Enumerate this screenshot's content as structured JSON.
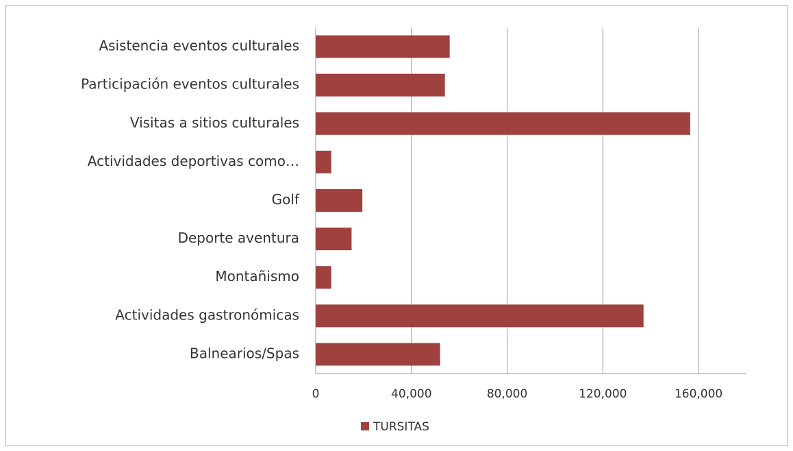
{
  "chart_data": {
    "type": "bar",
    "orientation": "horizontal",
    "categories": [
      "Asistencia eventos culturales",
      "Participación eventos culturales",
      "Visitas a sitios culturales",
      "Actividades deportivas como…",
      "Golf",
      "Deporte aventura",
      "Montañismo",
      "Actividades gastronómicas",
      "Balnearios/Spas"
    ],
    "series": [
      {
        "name": "TURSITAS",
        "color": "#9e413f",
        "values": [
          56000,
          54000,
          156500,
          6500,
          19500,
          15000,
          6500,
          137000,
          52000
        ]
      }
    ],
    "xlim": [
      0,
      180000
    ],
    "xticks": [
      0,
      {
        "value": 40000,
        "label": "40,000"
      },
      {
        "value": 80000,
        "label": "80,000"
      },
      {
        "value": 120000,
        "label": "120,000"
      },
      {
        "value": 160000,
        "label": "160,000"
      }
    ],
    "grid": true,
    "legend": "bottom"
  }
}
